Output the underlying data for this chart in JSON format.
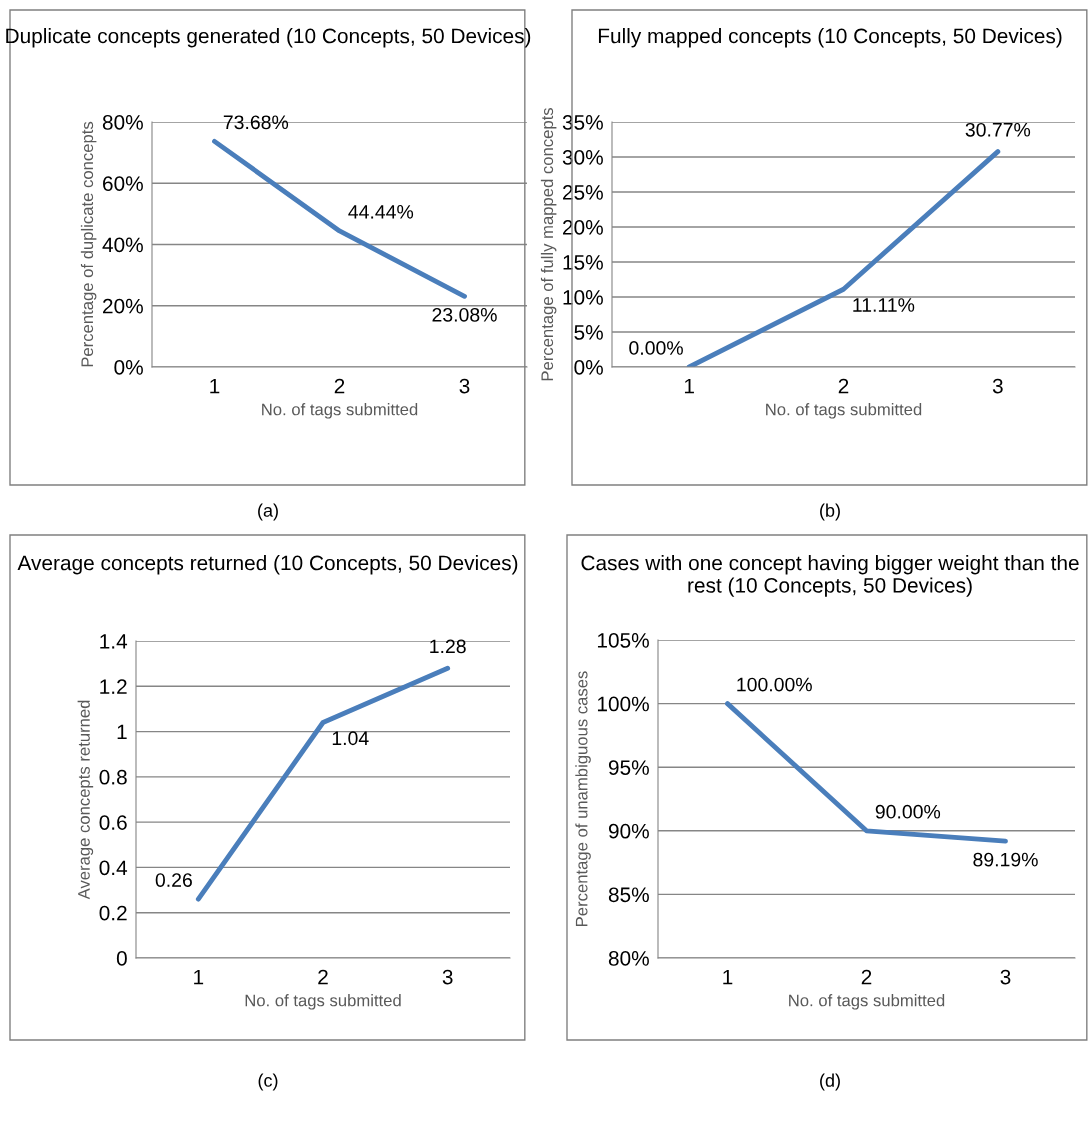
{
  "chart_data": [
    {
      "type": "line",
      "title": "Duplicate concepts generated (10 Concepts, 50 Devices)",
      "xlabel": "No. of tags submitted",
      "ylabel": "Percentage of duplicate concepts",
      "categories": [
        "1",
        "2",
        "3"
      ],
      "series": [
        {
          "color": "#4a7ebb",
          "values": [
            73.68,
            44.44,
            23.08
          ],
          "value_labels": [
            "73.68%",
            "44.44%",
            "23.08%"
          ]
        }
      ],
      "ylim": [
        0,
        80
      ],
      "yticks": [
        {
          "value": 0,
          "label": "0%"
        },
        {
          "value": 20,
          "label": "20%"
        },
        {
          "value": 40,
          "label": "40%"
        },
        {
          "value": 60,
          "label": "60%"
        },
        {
          "value": 80,
          "label": "80%"
        }
      ],
      "grid": "y",
      "legend": false,
      "marker": "none",
      "line_style": "solid",
      "annotations": [
        "(a)"
      ]
    },
    {
      "type": "line",
      "title": "Fully mapped concepts (10 Concepts, 50 Devices)",
      "xlabel": "No. of tags submitted",
      "ylabel": "Percentage of fully mapped concepts",
      "categories": [
        "1",
        "2",
        "3"
      ],
      "series": [
        {
          "color": "#4a7ebb",
          "values": [
            0.0,
            11.11,
            30.77
          ],
          "value_labels": [
            "0.00%",
            "11.11%",
            "30.77%"
          ]
        }
      ],
      "ylim": [
        0,
        35
      ],
      "yticks": [
        {
          "value": 0,
          "label": "0%"
        },
        {
          "value": 5,
          "label": "5%"
        },
        {
          "value": 10,
          "label": "10%"
        },
        {
          "value": 15,
          "label": "15%"
        },
        {
          "value": 20,
          "label": "20%"
        },
        {
          "value": 25,
          "label": "25%"
        },
        {
          "value": 30,
          "label": "30%"
        },
        {
          "value": 35,
          "label": "35%"
        }
      ],
      "grid": "y",
      "legend": false,
      "marker": "none",
      "line_style": "solid",
      "annotations": [
        "(b)"
      ]
    },
    {
      "type": "line",
      "title": "Average concepts returned (10 Concepts, 50 Devices)",
      "xlabel": "No. of tags submitted",
      "ylabel": "Average concepts returned",
      "categories": [
        "1",
        "2",
        "3"
      ],
      "series": [
        {
          "color": "#4a7ebb",
          "values": [
            0.26,
            1.04,
            1.28
          ],
          "value_labels": [
            "0.26",
            "1.04",
            "1.28"
          ]
        }
      ],
      "ylim": [
        0,
        1.4
      ],
      "yticks": [
        0,
        0.2,
        0.4,
        0.6,
        0.8,
        1,
        1.2,
        1.4
      ],
      "grid": "y",
      "legend": false,
      "marker": "none",
      "line_style": "solid",
      "annotations": [
        "(c)"
      ]
    },
    {
      "type": "line",
      "title": "Cases with one concept having bigger weight than the rest (10 Concepts, 50 Devices)",
      "xlabel": "No. of tags submitted",
      "ylabel": "Percentage of unambiguous cases",
      "categories": [
        "1",
        "2",
        "3"
      ],
      "series": [
        {
          "color": "#4a7ebb",
          "values": [
            100.0,
            90.0,
            89.19
          ],
          "value_labels": [
            "100.00%",
            "90.00%",
            "89.19%"
          ]
        }
      ],
      "ylim": [
        80,
        105
      ],
      "yticks": [
        {
          "value": 80,
          "label": "80%"
        },
        {
          "value": 85,
          "label": "85%"
        },
        {
          "value": 90,
          "label": "90%"
        },
        {
          "value": 95,
          "label": "95%"
        },
        {
          "value": 100,
          "label": "100%"
        },
        {
          "value": 105,
          "label": "105%"
        }
      ],
      "grid": "y",
      "legend": false,
      "marker": "none",
      "line_style": "solid",
      "annotations": [
        "(d)"
      ]
    }
  ]
}
